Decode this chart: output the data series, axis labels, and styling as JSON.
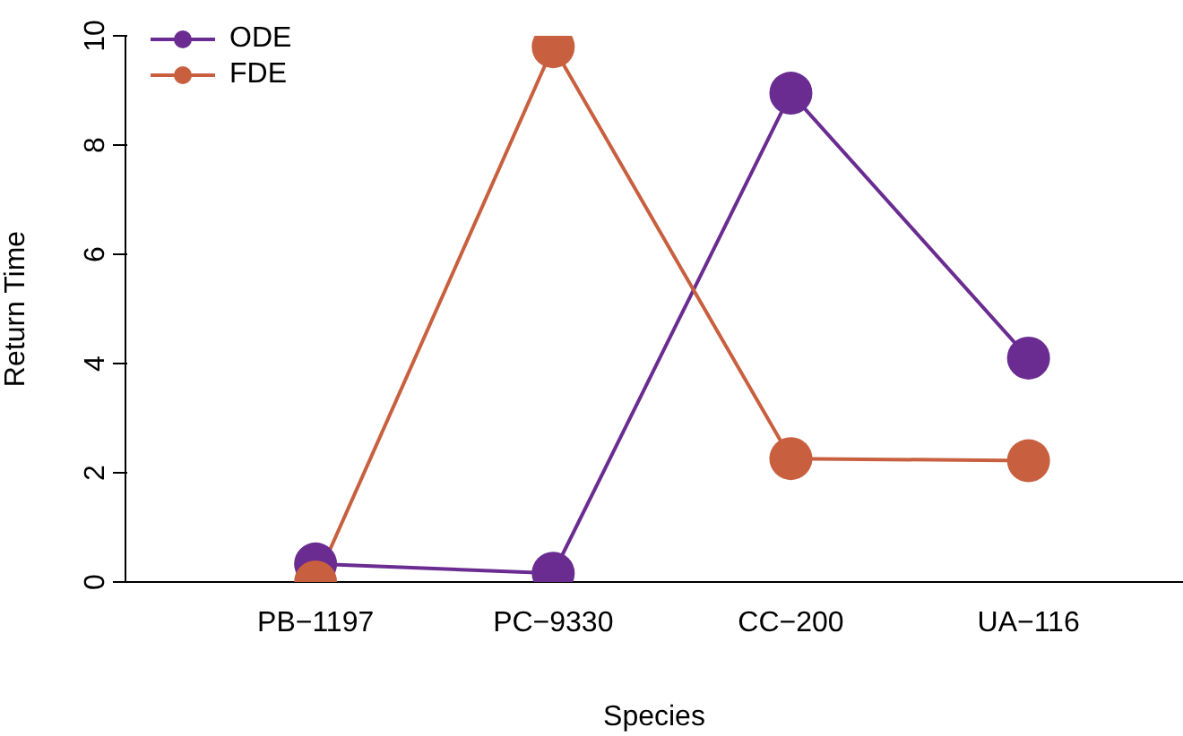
{
  "chart_data": {
    "type": "line",
    "xlabel": "Species",
    "ylabel": "Return Time",
    "categories": [
      "PB−1197",
      "PC−9330",
      "CC−200",
      "UA−116"
    ],
    "series": [
      {
        "name": "ODE",
        "color": "#6a2c91",
        "values": [
          0.33,
          0.16,
          8.95,
          4.1
        ]
      },
      {
        "name": "FDE",
        "color": "#c8603f",
        "values": [
          0,
          9.8,
          2.26,
          2.22
        ]
      }
    ],
    "ylim": [
      0,
      10
    ],
    "yticks": [
      0,
      2,
      4,
      6,
      8,
      10
    ],
    "legend": "top left",
    "marker": "circle",
    "line_style": "solid",
    "grid": false
  }
}
